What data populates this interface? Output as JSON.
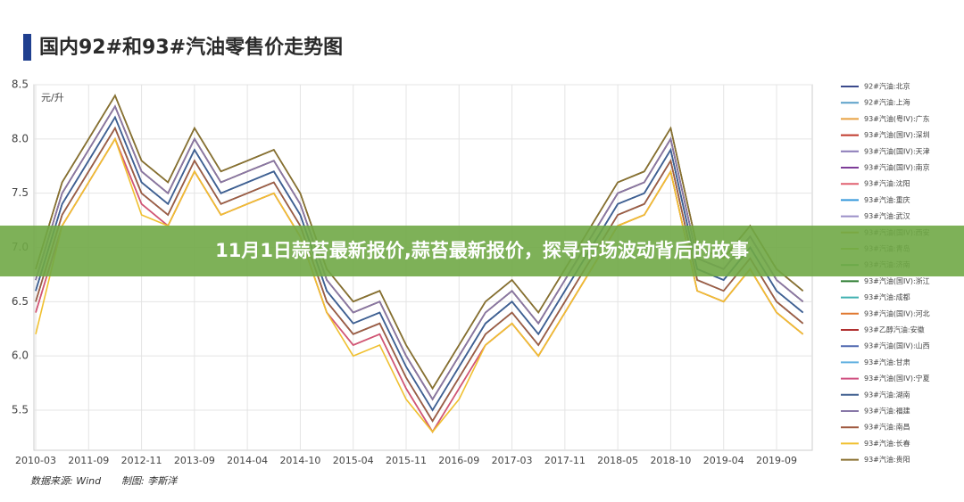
{
  "banner": "11月1日蒜苔最新报价,蒜苔最新报价，探寻市场波动背后的故事",
  "chart_data": {
    "type": "line",
    "title": "国内92#和93#汽油零售价走势图",
    "y_label": "元/升",
    "source": "数据来源: Wind",
    "author": "制图: 李斯洋",
    "grid": true,
    "ylim": [
      5.13,
      8.5
    ],
    "yticks": [
      5.5,
      {
        "value": 6,
        "label": "6.0"
      },
      6.5,
      {
        "value": 7,
        "label": "7.0"
      },
      7.5,
      {
        "value": 8,
        "label": "8.0"
      },
      8.5
    ],
    "categories": [
      "2010-03",
      null,
      "2011-09",
      null,
      "2012-11",
      null,
      "2013-09",
      null,
      "2014-04",
      null,
      "2014-10",
      null,
      "2015-04",
      null,
      "2015-11",
      null,
      "2016-09",
      null,
      "2017-03",
      null,
      "2017-11",
      null,
      "2018-05",
      null,
      "2018-10",
      null,
      "2019-04",
      null,
      "2019-09",
      null
    ],
    "series": [
      {
        "name": "92#汽油:北京",
        "color": "#3b4a8c",
        "values": [
          6.6,
          7.4,
          7.8,
          8.2,
          7.6,
          7.4,
          7.9,
          7.5,
          7.6,
          7.7,
          7.3,
          6.6,
          6.3,
          6.4,
          5.9,
          5.5,
          5.9,
          6.3,
          6.5,
          6.2,
          6.6,
          7.0,
          7.4,
          7.5,
          7.9,
          6.8,
          6.7,
          7.0,
          6.6,
          6.4
        ]
      },
      {
        "name": "92#汽油:上海",
        "color": "#5aa0c8",
        "values": [
          6.5,
          7.3,
          7.7,
          8.1,
          7.5,
          7.3,
          7.8,
          7.4,
          7.5,
          7.6,
          7.2,
          6.5,
          6.2,
          6.3,
          5.8,
          5.4,
          5.8,
          6.2,
          6.4,
          6.1,
          6.5,
          6.9,
          7.3,
          7.4,
          7.8,
          6.7,
          6.6,
          6.9,
          6.5,
          6.3
        ]
      },
      {
        "name": "93#汽油(粤IV):广东",
        "color": "#e8a040",
        "values": [
          6.4,
          7.2,
          7.6,
          8.0,
          7.4,
          7.2,
          7.7,
          7.3,
          7.4,
          7.5,
          7.1,
          6.4,
          6.1,
          6.2,
          5.7,
          5.3,
          5.7,
          6.1,
          6.3,
          6.0,
          6.4,
          6.8,
          7.2,
          7.3,
          7.7,
          6.6,
          6.5,
          6.8,
          6.4,
          6.2
        ]
      },
      {
        "name": "93#汽油(国IV):深圳",
        "color": "#c0392b",
        "values": [
          6.7,
          7.5,
          7.9,
          8.3,
          7.7,
          7.5,
          8.0,
          7.6,
          7.7,
          7.8,
          7.4,
          6.7,
          6.4,
          6.5,
          6.0,
          5.6,
          6.0,
          6.4,
          6.6,
          6.3,
          6.7,
          7.1,
          7.5,
          7.6,
          8.0,
          6.9,
          6.8,
          7.1,
          6.7,
          6.5
        ]
      },
      {
        "name": "93#汽油(国IV):天津",
        "color": "#8a7ab8",
        "values": [
          6.6,
          7.4,
          7.8,
          8.2,
          7.6,
          7.4,
          7.9,
          7.5,
          7.6,
          7.7,
          7.3,
          6.6,
          6.3,
          6.4,
          5.9,
          5.5,
          5.9,
          6.3,
          6.5,
          6.2,
          6.6,
          7.0,
          7.4,
          7.5,
          7.9,
          6.8,
          6.7,
          7.0,
          6.6,
          6.4
        ]
      },
      {
        "name": "93#汽油(国IV):南京",
        "color": "#7d3c98",
        "values": [
          6.5,
          7.3,
          7.7,
          8.1,
          7.5,
          7.3,
          7.8,
          7.4,
          7.5,
          7.6,
          7.2,
          6.5,
          6.2,
          6.3,
          5.8,
          5.4,
          5.8,
          6.2,
          6.4,
          6.1,
          6.5,
          6.9,
          7.3,
          7.4,
          7.8,
          6.7,
          6.6,
          6.9,
          6.5,
          6.3
        ]
      },
      {
        "name": "93#汽油:沈阳",
        "color": "#e06070",
        "values": [
          6.8,
          7.6,
          8.0,
          8.4,
          7.8,
          7.6,
          8.1,
          7.7,
          7.8,
          7.9,
          7.5,
          6.8,
          6.5,
          6.6,
          6.1,
          5.7,
          6.1,
          6.5,
          6.7,
          6.4,
          6.8,
          7.2,
          7.6,
          7.7,
          8.1,
          7.0,
          6.9,
          7.2,
          6.8,
          6.6
        ]
      },
      {
        "name": "93#汽油:重庆",
        "color": "#3498db",
        "values": [
          6.7,
          7.5,
          7.9,
          8.3,
          7.7,
          7.5,
          8.0,
          7.6,
          7.7,
          7.8,
          7.4,
          6.7,
          6.4,
          6.5,
          6.0,
          5.6,
          6.0,
          6.4,
          6.6,
          6.3,
          6.7,
          7.1,
          7.5,
          7.6,
          8.0,
          6.9,
          6.8,
          7.1,
          6.7,
          6.5
        ]
      },
      {
        "name": "93#汽油:武汉",
        "color": "#9b8fc8",
        "values": [
          6.6,
          7.4,
          7.8,
          8.2,
          7.6,
          7.4,
          7.9,
          7.5,
          7.6,
          7.7,
          7.3,
          6.6,
          6.3,
          6.4,
          5.9,
          5.5,
          5.9,
          6.3,
          6.5,
          6.2,
          6.6,
          7.0,
          7.4,
          7.5,
          7.9,
          6.8,
          6.7,
          7.0,
          6.6,
          6.4
        ]
      },
      {
        "name": "93#汽油(国IV):西安",
        "color": "#d4a020",
        "values": [
          6.4,
          7.2,
          7.6,
          8.0,
          7.4,
          7.2,
          7.7,
          7.3,
          7.4,
          7.5,
          7.1,
          6.4,
          6.1,
          6.2,
          5.7,
          5.3,
          5.7,
          6.1,
          6.3,
          6.0,
          6.4,
          6.8,
          7.2,
          7.3,
          7.7,
          6.6,
          6.5,
          6.8,
          6.4,
          6.2
        ]
      },
      {
        "name": "93#汽油:青岛",
        "color": "#a8c840",
        "values": [
          6.5,
          7.3,
          7.7,
          8.1,
          7.5,
          7.3,
          7.8,
          7.4,
          7.5,
          7.6,
          7.2,
          6.5,
          6.2,
          6.3,
          5.8,
          5.4,
          5.8,
          6.2,
          6.4,
          6.1,
          6.5,
          6.9,
          7.3,
          7.4,
          7.8,
          6.7,
          6.6,
          6.9,
          6.5,
          6.3
        ]
      },
      {
        "name": "93#汽油:济南",
        "color": "#48a868",
        "values": [
          6.7,
          7.5,
          7.9,
          8.3,
          7.7,
          7.5,
          8.0,
          7.6,
          7.7,
          7.8,
          7.4,
          6.7,
          6.4,
          6.5,
          6.0,
          5.6,
          6.0,
          6.4,
          6.6,
          6.3,
          6.7,
          7.1,
          7.5,
          7.6,
          8.0,
          6.9,
          6.8,
          7.1,
          6.7,
          6.5
        ]
      },
      {
        "name": "93#汽油(国IV):浙江",
        "color": "#2e7d32",
        "values": [
          6.8,
          7.6,
          8.0,
          8.4,
          7.8,
          7.6,
          8.1,
          7.7,
          7.8,
          7.9,
          7.5,
          6.8,
          6.5,
          6.6,
          6.1,
          5.7,
          6.1,
          6.5,
          6.7,
          6.4,
          6.8,
          7.2,
          7.6,
          7.7,
          8.1,
          7.0,
          6.9,
          7.2,
          6.8,
          6.6
        ]
      },
      {
        "name": "93#汽油:成都",
        "color": "#40b0b0",
        "values": [
          6.6,
          7.4,
          7.8,
          8.2,
          7.6,
          7.4,
          7.9,
          7.5,
          7.6,
          7.7,
          7.3,
          6.6,
          6.3,
          6.4,
          5.9,
          5.5,
          5.9,
          6.3,
          6.5,
          6.2,
          6.6,
          7.0,
          7.4,
          7.5,
          7.9,
          6.8,
          6.7,
          7.0,
          6.6,
          6.4
        ]
      },
      {
        "name": "93#汽油(国IV):河北",
        "color": "#e07830",
        "values": [
          6.5,
          7.3,
          7.7,
          8.1,
          7.5,
          7.3,
          7.8,
          7.4,
          7.5,
          7.6,
          7.2,
          6.5,
          6.2,
          6.3,
          5.8,
          5.4,
          5.8,
          6.2,
          6.4,
          6.1,
          6.5,
          6.9,
          7.3,
          7.4,
          7.8,
          6.7,
          6.6,
          6.9,
          6.5,
          6.3
        ]
      },
      {
        "name": "93#乙醇汽油:安徽",
        "color": "#b03030",
        "values": [
          6.7,
          7.5,
          7.9,
          8.3,
          7.7,
          7.5,
          8.0,
          7.6,
          7.7,
          7.8,
          7.4,
          6.7,
          6.4,
          6.5,
          6.0,
          5.6,
          6.0,
          6.4,
          6.6,
          6.3,
          6.7,
          7.1,
          7.5,
          7.6,
          8.0,
          6.9,
          6.8,
          7.1,
          6.7,
          6.5
        ]
      },
      {
        "name": "93#汽油(国IV):山西",
        "color": "#5068b0",
        "values": [
          6.6,
          7.4,
          7.8,
          8.2,
          7.6,
          7.4,
          7.9,
          7.5,
          7.6,
          7.7,
          7.3,
          6.6,
          6.3,
          6.4,
          5.9,
          5.5,
          5.9,
          6.3,
          6.5,
          6.2,
          6.6,
          7.0,
          7.4,
          7.5,
          7.9,
          6.8,
          6.7,
          7.0,
          6.6,
          6.4
        ]
      },
      {
        "name": "93#汽油:甘肃",
        "color": "#60b0e0",
        "values": [
          6.5,
          7.3,
          7.7,
          8.1,
          7.5,
          7.3,
          7.8,
          7.4,
          7.5,
          7.6,
          7.2,
          6.5,
          6.2,
          6.3,
          5.8,
          5.4,
          5.8,
          6.2,
          6.4,
          6.1,
          6.5,
          6.9,
          7.3,
          7.4,
          7.8,
          6.7,
          6.6,
          6.9,
          6.5,
          6.3
        ]
      },
      {
        "name": "93#汽油(国IV):宁夏",
        "color": "#d05080",
        "values": [
          6.4,
          7.2,
          7.6,
          8.0,
          7.4,
          7.2,
          7.7,
          7.3,
          7.4,
          7.5,
          7.1,
          6.4,
          6.1,
          6.2,
          5.7,
          5.3,
          5.7,
          6.1,
          6.3,
          6.0,
          6.4,
          6.8,
          7.2,
          7.3,
          7.7,
          6.6,
          6.5,
          6.8,
          6.4,
          6.2
        ]
      },
      {
        "name": "93#汽油:湖南",
        "color": "#406090",
        "values": [
          6.6,
          7.4,
          7.8,
          8.2,
          7.6,
          7.4,
          7.9,
          7.5,
          7.6,
          7.7,
          7.3,
          6.6,
          6.3,
          6.4,
          5.9,
          5.5,
          5.9,
          6.3,
          6.5,
          6.2,
          6.6,
          7.0,
          7.4,
          7.5,
          7.9,
          6.8,
          6.7,
          7.0,
          6.6,
          6.4
        ]
      },
      {
        "name": "93#汽油:福建",
        "color": "#8878a8",
        "values": [
          6.7,
          7.5,
          7.9,
          8.3,
          7.7,
          7.5,
          8.0,
          7.6,
          7.7,
          7.8,
          7.4,
          6.7,
          6.4,
          6.5,
          6.0,
          5.6,
          6.0,
          6.4,
          6.6,
          6.3,
          6.7,
          7.1,
          7.5,
          7.6,
          8.0,
          6.9,
          6.8,
          7.1,
          6.7,
          6.5
        ]
      },
      {
        "name": "93#汽油:南昌",
        "color": "#a05a40",
        "values": [
          6.5,
          7.3,
          7.7,
          8.1,
          7.5,
          7.3,
          7.8,
          7.4,
          7.5,
          7.6,
          7.2,
          6.5,
          6.2,
          6.3,
          5.8,
          5.4,
          5.8,
          6.2,
          6.4,
          6.1,
          6.5,
          6.9,
          7.3,
          7.4,
          7.8,
          6.7,
          6.6,
          6.9,
          6.5,
          6.3
        ]
      },
      {
        "name": "93#汽油:长春",
        "color": "#f0c030",
        "values": [
          6.2,
          7.2,
          7.6,
          8.0,
          7.3,
          7.2,
          7.7,
          7.3,
          7.4,
          7.5,
          7.1,
          6.4,
          6.0,
          6.1,
          5.6,
          5.3,
          5.6,
          6.1,
          6.3,
          6.0,
          6.4,
          6.8,
          7.2,
          7.3,
          7.7,
          6.6,
          6.5,
          6.8,
          6.4,
          6.2
        ]
      },
      {
        "name": "93#汽油:贵阳",
        "color": "#8a7030",
        "values": [
          6.8,
          7.6,
          8.0,
          8.4,
          7.8,
          7.6,
          8.1,
          7.7,
          7.8,
          7.9,
          7.5,
          6.8,
          6.5,
          6.6,
          6.1,
          5.7,
          6.1,
          6.5,
          6.7,
          6.4,
          6.8,
          7.2,
          7.6,
          7.7,
          8.1,
          7.0,
          6.9,
          7.2,
          6.8,
          6.6
        ]
      }
    ]
  }
}
